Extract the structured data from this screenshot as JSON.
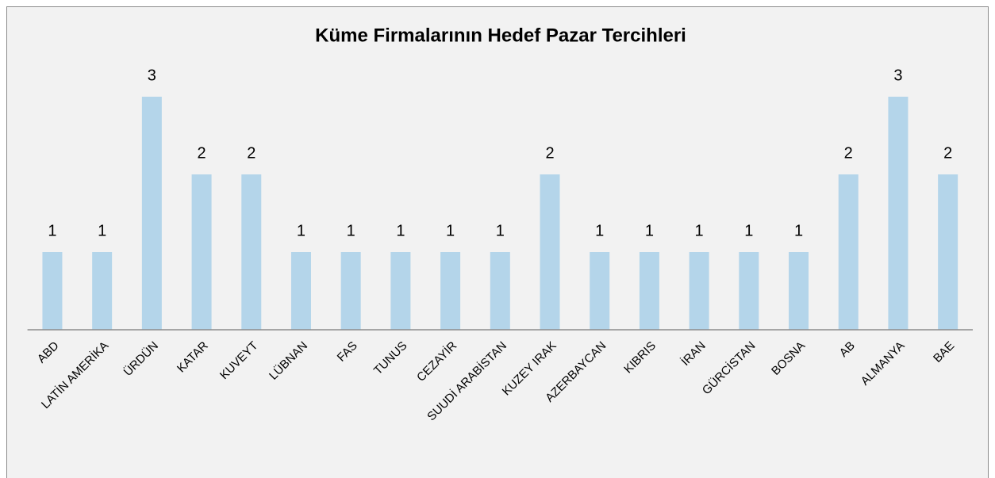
{
  "chart_data": {
    "type": "bar",
    "title": "Küme Firmalarının Hedef Pazar Tercihleri",
    "categories": [
      "ABD",
      "LATİN AMERİKA",
      "ÜRDÜN",
      "KATAR",
      "KUVEYT",
      "LÜBNAN",
      "FAS",
      "TUNUS",
      "CEZAYİR",
      "SUUDİ ARABİSTAN",
      "KUZEY IRAK",
      "AZERBAYCAN",
      "KIBRIS",
      "İRAN",
      "GÜRCİSTAN",
      "BOSNA",
      "AB",
      "ALMANYA",
      "BAE"
    ],
    "values": [
      1,
      1,
      3,
      2,
      2,
      1,
      1,
      1,
      1,
      1,
      2,
      1,
      1,
      1,
      1,
      1,
      2,
      3,
      2
    ],
    "color": "#b4d5ea",
    "ylim": [
      0,
      3.5
    ],
    "grid": false
  }
}
